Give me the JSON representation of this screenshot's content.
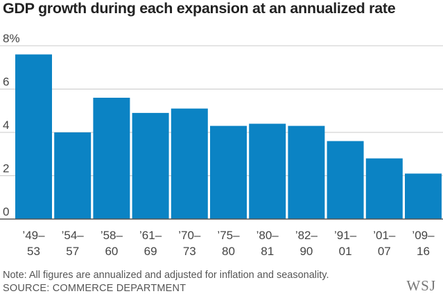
{
  "chart_data": {
    "type": "bar",
    "title": "GDP growth during each expansion at an annualized rate",
    "categories": [
      [
        "’49–",
        "53"
      ],
      [
        "’54–",
        "57"
      ],
      [
        "’58–",
        "60"
      ],
      [
        "’61–",
        "69"
      ],
      [
        "’70–",
        "73"
      ],
      [
        "’75–",
        "80"
      ],
      [
        "’80–",
        "81"
      ],
      [
        "’82–",
        "90"
      ],
      [
        "’91–",
        "01"
      ],
      [
        "’01–",
        "07"
      ],
      [
        "’09–",
        "16"
      ]
    ],
    "values": [
      7.6,
      4.0,
      5.6,
      4.9,
      5.1,
      4.3,
      4.4,
      4.3,
      3.6,
      2.8,
      2.1
    ],
    "ylim": [
      0,
      8
    ],
    "yticks": [
      0,
      2,
      4,
      6,
      8
    ],
    "ytick_labels": [
      "0",
      "2",
      "4",
      "6",
      "8%"
    ],
    "bar_color": "#0b83c4",
    "grid_color": "#c8c8c8",
    "axis_color": "#555555"
  },
  "note": "Note: All figures are annualized and adjusted for inflation and seasonality.",
  "source": "SOURCE: COMMERCE DEPARTMENT",
  "logo": "WSJ"
}
